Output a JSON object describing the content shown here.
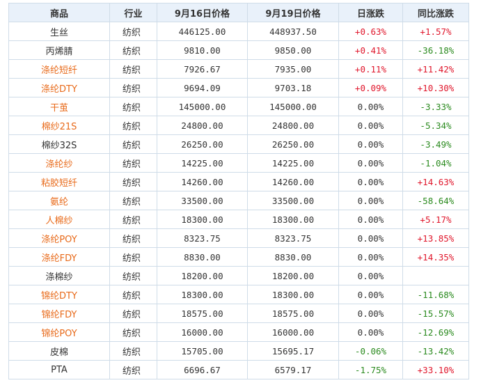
{
  "header": {
    "col_name": "商品",
    "col_industry": "行业",
    "col_price1": "9月16日价格",
    "col_price2": "9月19日价格",
    "col_daily": "日涨跌",
    "col_yoy": "同比涨跌"
  },
  "rows": [
    {
      "name": "生丝",
      "link": false,
      "industry": "纺织",
      "p1": "446125.00",
      "p2": "448937.50",
      "daily": "+0.63%",
      "daily_dir": "up",
      "yoy": "+1.57%",
      "yoy_dir": "up"
    },
    {
      "name": "丙烯腈",
      "link": false,
      "industry": "纺织",
      "p1": "9810.00",
      "p2": "9850.00",
      "daily": "+0.41%",
      "daily_dir": "up",
      "yoy": "-36.18%",
      "yoy_dir": "down"
    },
    {
      "name": "涤纶短纤",
      "link": true,
      "industry": "纺织",
      "p1": "7926.67",
      "p2": "7935.00",
      "daily": "+0.11%",
      "daily_dir": "up",
      "yoy": "+11.42%",
      "yoy_dir": "up"
    },
    {
      "name": "涤纶DTY",
      "link": true,
      "industry": "纺织",
      "p1": "9694.09",
      "p2": "9703.18",
      "daily": "+0.09%",
      "daily_dir": "up",
      "yoy": "+10.30%",
      "yoy_dir": "up"
    },
    {
      "name": "干茧",
      "link": true,
      "industry": "纺织",
      "p1": "145000.00",
      "p2": "145000.00",
      "daily": "0.00%",
      "daily_dir": "flat",
      "yoy": "-3.33%",
      "yoy_dir": "down"
    },
    {
      "name": "棉纱21S",
      "link": true,
      "industry": "纺织",
      "p1": "24800.00",
      "p2": "24800.00",
      "daily": "0.00%",
      "daily_dir": "flat",
      "yoy": "-5.34%",
      "yoy_dir": "down"
    },
    {
      "name": "棉纱32S",
      "link": false,
      "industry": "纺织",
      "p1": "26250.00",
      "p2": "26250.00",
      "daily": "0.00%",
      "daily_dir": "flat",
      "yoy": "-3.49%",
      "yoy_dir": "down"
    },
    {
      "name": "涤纶纱",
      "link": true,
      "industry": "纺织",
      "p1": "14225.00",
      "p2": "14225.00",
      "daily": "0.00%",
      "daily_dir": "flat",
      "yoy": "-1.04%",
      "yoy_dir": "down"
    },
    {
      "name": "粘胶短纤",
      "link": true,
      "industry": "纺织",
      "p1": "14260.00",
      "p2": "14260.00",
      "daily": "0.00%",
      "daily_dir": "flat",
      "yoy": "+14.63%",
      "yoy_dir": "up"
    },
    {
      "name": "氨纶",
      "link": true,
      "industry": "纺织",
      "p1": "33500.00",
      "p2": "33500.00",
      "daily": "0.00%",
      "daily_dir": "flat",
      "yoy": "-58.64%",
      "yoy_dir": "down"
    },
    {
      "name": "人棉纱",
      "link": true,
      "industry": "纺织",
      "p1": "18300.00",
      "p2": "18300.00",
      "daily": "0.00%",
      "daily_dir": "flat",
      "yoy": "+5.17%",
      "yoy_dir": "up"
    },
    {
      "name": "涤纶POY",
      "link": true,
      "industry": "纺织",
      "p1": "8323.75",
      "p2": "8323.75",
      "daily": "0.00%",
      "daily_dir": "flat",
      "yoy": "+13.85%",
      "yoy_dir": "up"
    },
    {
      "name": "涤纶FDY",
      "link": true,
      "industry": "纺织",
      "p1": "8830.00",
      "p2": "8830.00",
      "daily": "0.00%",
      "daily_dir": "flat",
      "yoy": "+14.35%",
      "yoy_dir": "up"
    },
    {
      "name": "涤棉纱",
      "link": false,
      "industry": "纺织",
      "p1": "18200.00",
      "p2": "18200.00",
      "daily": "0.00%",
      "daily_dir": "flat",
      "yoy": "",
      "yoy_dir": "flat"
    },
    {
      "name": "锦纶DTY",
      "link": true,
      "industry": "纺织",
      "p1": "18300.00",
      "p2": "18300.00",
      "daily": "0.00%",
      "daily_dir": "flat",
      "yoy": "-11.68%",
      "yoy_dir": "down"
    },
    {
      "name": "锦纶FDY",
      "link": true,
      "industry": "纺织",
      "p1": "18575.00",
      "p2": "18575.00",
      "daily": "0.00%",
      "daily_dir": "flat",
      "yoy": "-15.57%",
      "yoy_dir": "down"
    },
    {
      "name": "锦纶POY",
      "link": true,
      "industry": "纺织",
      "p1": "16000.00",
      "p2": "16000.00",
      "daily": "0.00%",
      "daily_dir": "flat",
      "yoy": "-12.69%",
      "yoy_dir": "down"
    },
    {
      "name": "皮棉",
      "link": false,
      "industry": "纺织",
      "p1": "15705.00",
      "p2": "15695.17",
      "daily": "-0.06%",
      "daily_dir": "down",
      "yoy": "-13.42%",
      "yoy_dir": "down"
    },
    {
      "name": "PTA",
      "link": false,
      "industry": "纺织",
      "p1": "6696.67",
      "p2": "6579.17",
      "daily": "-1.75%",
      "daily_dir": "down",
      "yoy": "+33.10%",
      "yoy_dir": "up"
    }
  ]
}
